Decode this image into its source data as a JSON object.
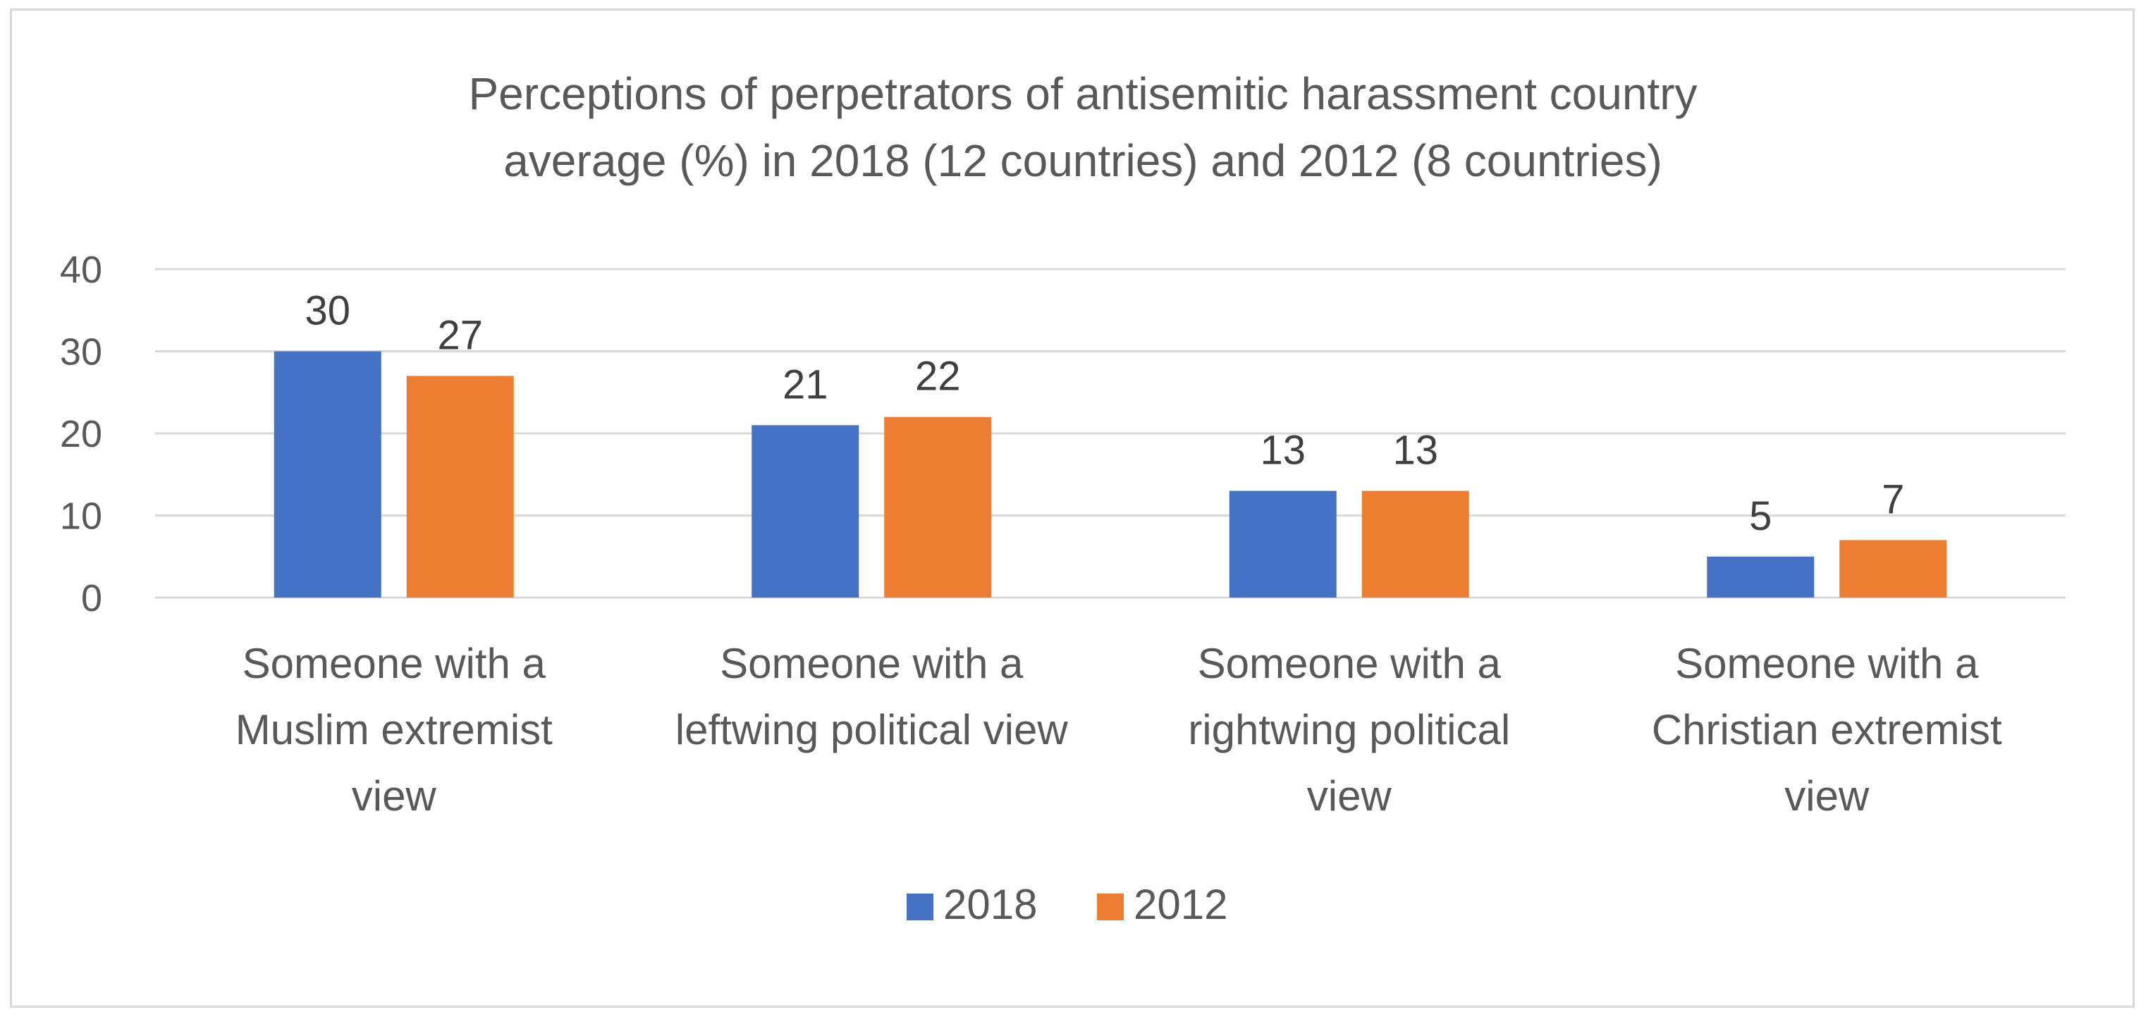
{
  "chart_data": {
    "type": "bar",
    "title_lines": [
      "Perceptions of perpetrators of antisemitic harassment country",
      "average (%) in 2018 (12 countries) and 2012 (8 countries)"
    ],
    "categories": [
      [
        "Someone with a",
        "Muslim extremist",
        "view"
      ],
      [
        "Someone with a",
        "leftwing political view"
      ],
      [
        "Someone with a",
        "rightwing political",
        "view"
      ],
      [
        "Someone with a",
        "Christian extremist",
        "view"
      ]
    ],
    "series": [
      {
        "name": "2018",
        "color": "#4472c4",
        "values": [
          30,
          21,
          13,
          5
        ]
      },
      {
        "name": "2012",
        "color": "#ed7d31",
        "values": [
          27,
          22,
          13,
          7
        ]
      }
    ],
    "ylim": [
      0,
      40
    ],
    "yticks": [
      0,
      10,
      20,
      30,
      40
    ],
    "grid": true,
    "legend_position": "bottom"
  }
}
